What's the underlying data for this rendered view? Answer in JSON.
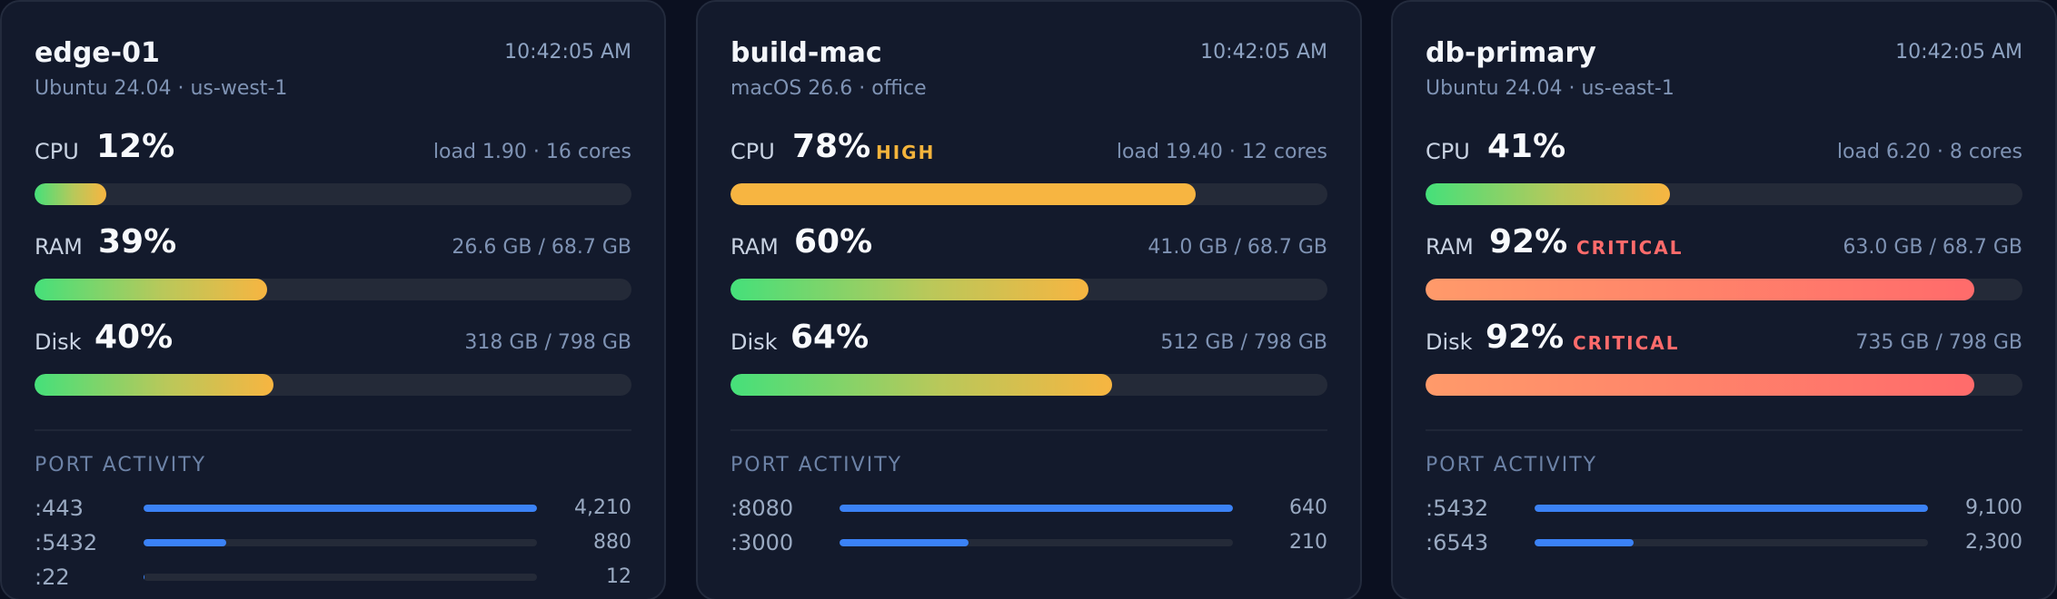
{
  "cards": [
    {
      "host": "edge-01",
      "time": "10:42:05 AM",
      "os": "Ubuntu 24.04 · us-west-1",
      "metrics": [
        {
          "label": "CPU",
          "pct": "12%",
          "value": 12,
          "badge": "",
          "status": "normal",
          "detail": "load 1.90 · 16 cores"
        },
        {
          "label": "RAM",
          "pct": "39%",
          "value": 39,
          "badge": "",
          "status": "normal",
          "detail": "26.6 GB / 68.7 GB"
        },
        {
          "label": "Disk",
          "pct": "40%",
          "value": 40,
          "badge": "",
          "status": "normal",
          "detail": "318 GB / 798 GB"
        }
      ],
      "ports_title": "PORT ACTIVITY",
      "ports": [
        {
          "name": ":443",
          "count": "4,210",
          "value": 4210
        },
        {
          "name": ":5432",
          "count": "880",
          "value": 880
        },
        {
          "name": ":22",
          "count": "12",
          "value": 12
        }
      ]
    },
    {
      "host": "build-mac",
      "time": "10:42:05 AM",
      "os": "macOS 26.6 · office",
      "metrics": [
        {
          "label": "CPU",
          "pct": "78%",
          "value": 78,
          "badge": "HIGH",
          "status": "high",
          "detail": "load 19.40 · 12 cores"
        },
        {
          "label": "RAM",
          "pct": "60%",
          "value": 60,
          "badge": "",
          "status": "normal",
          "detail": "41.0 GB / 68.7 GB"
        },
        {
          "label": "Disk",
          "pct": "64%",
          "value": 64,
          "badge": "",
          "status": "normal",
          "detail": "512 GB / 798 GB"
        }
      ],
      "ports_title": "PORT ACTIVITY",
      "ports": [
        {
          "name": ":8080",
          "count": "640",
          "value": 640
        },
        {
          "name": ":3000",
          "count": "210",
          "value": 210
        }
      ]
    },
    {
      "host": "db-primary",
      "time": "10:42:05 AM",
      "os": "Ubuntu 24.04 · us-east-1",
      "metrics": [
        {
          "label": "CPU",
          "pct": "41%",
          "value": 41,
          "badge": "",
          "status": "normal",
          "detail": "load 6.20 · 8 cores"
        },
        {
          "label": "RAM",
          "pct": "92%",
          "value": 92,
          "badge": "CRITICAL",
          "status": "critical",
          "detail": "63.0 GB / 68.7 GB"
        },
        {
          "label": "Disk",
          "pct": "92%",
          "value": 92,
          "badge": "CRITICAL",
          "status": "critical",
          "detail": "735 GB / 798 GB"
        }
      ],
      "ports_title": "PORT ACTIVITY",
      "ports": [
        {
          "name": ":5432",
          "count": "9,100",
          "value": 9100
        },
        {
          "name": ":6543",
          "count": "2,300",
          "value": 2300
        }
      ]
    }
  ],
  "colors": {
    "background": "#0b1020",
    "card": "#131a2c",
    "normal_start": "#45e07a",
    "normal_end": "#f7b541",
    "high": "#f7b541",
    "critical": "#ff6b6b",
    "port_bar": "#3b82f6"
  }
}
